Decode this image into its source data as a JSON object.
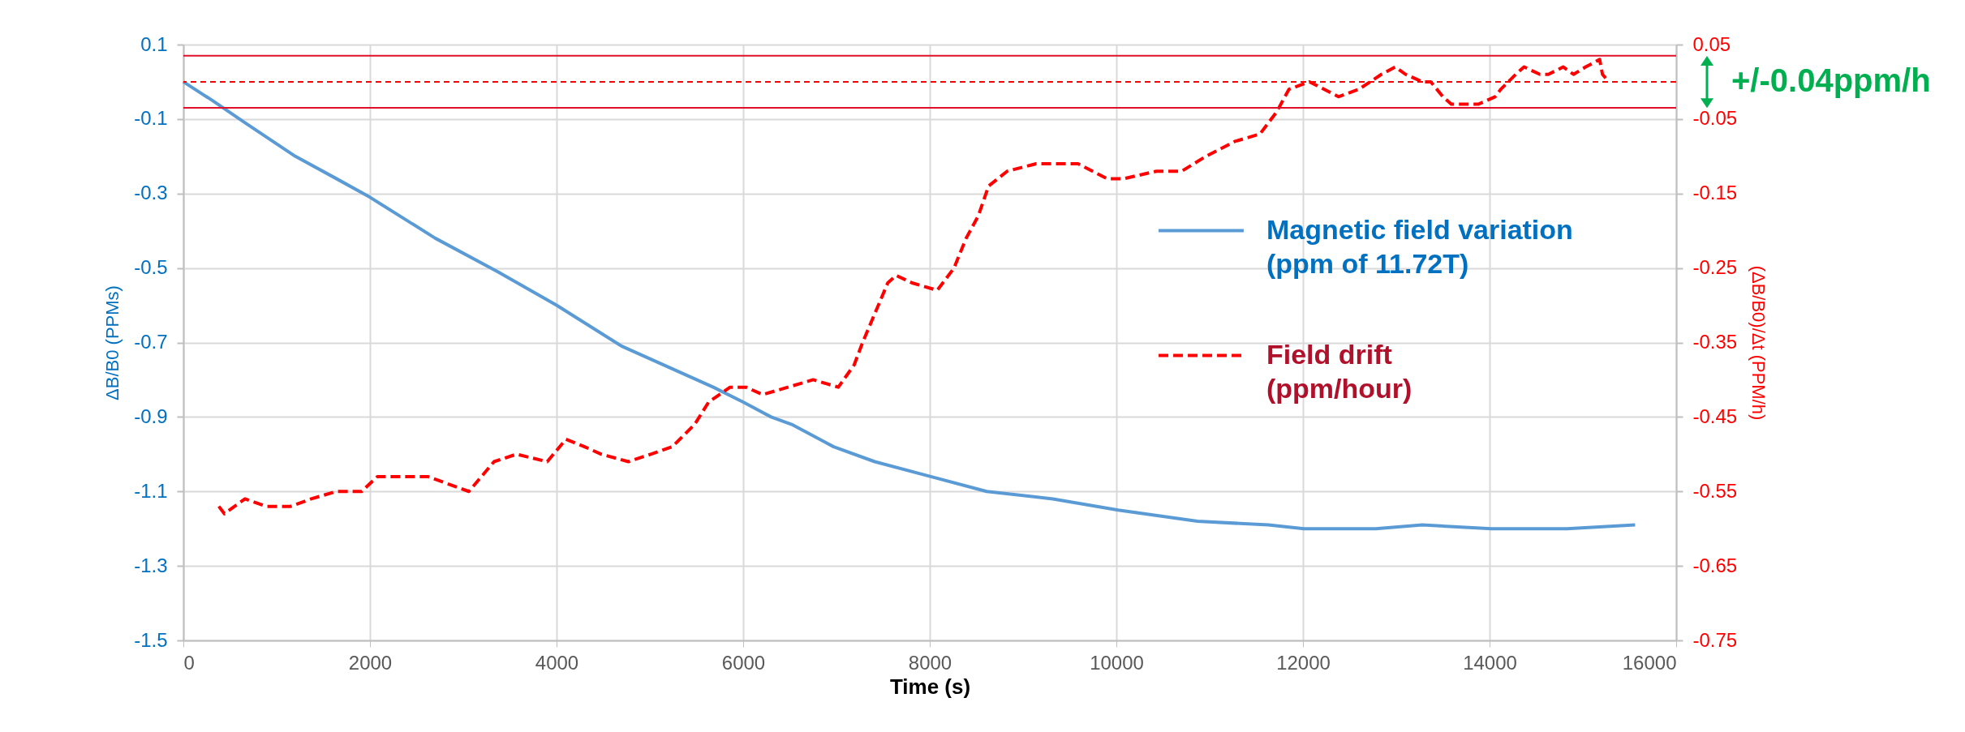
{
  "chart_data": {
    "type": "line",
    "xlabel": "Time (s)",
    "ylabel": "ΔB/B0 (PPMs)",
    "y2label": "(ΔB/B0)/Δt (PPM/h)",
    "xlim": [
      0,
      16000
    ],
    "xticks": [
      0,
      2000,
      4000,
      6000,
      8000,
      10000,
      12000,
      14000,
      16000
    ],
    "ylim": [
      -1.5,
      0.1
    ],
    "yticks": [
      0.1,
      -0.1,
      -0.3,
      -0.5,
      -0.7,
      -0.9,
      -1.1,
      -1.3,
      -1.5
    ],
    "y2lim": [
      -0.75,
      0.05
    ],
    "y2ticks": [
      0.05,
      -0.05,
      -0.15,
      -0.25,
      -0.35,
      -0.45,
      -0.55,
      -0.65,
      -0.75
    ],
    "grid": true,
    "legend": "right",
    "series": [
      {
        "name": "Magnetic field variation (ppm of 11.72T)",
        "color": "#5b9bd5",
        "line_style": "solid",
        "x": [
          0,
          310,
          660,
          1200,
          1640,
          2000,
          2700,
          3370,
          4000,
          4700,
          5680,
          6000,
          6300,
          6520,
          6970,
          7410,
          8010,
          8610,
          9320,
          10020,
          10870,
          11630,
          12010,
          12780,
          13280,
          14020,
          14830,
          15560
        ],
        "values": [
          0,
          -0.05,
          -0.11,
          -0.2,
          -0.26,
          -0.31,
          -0.42,
          -0.51,
          -0.6,
          -0.71,
          -0.82,
          -0.86,
          -0.9,
          -0.92,
          -0.98,
          -1.02,
          -1.06,
          -1.1,
          -1.12,
          -1.15,
          -1.18,
          -1.19,
          -1.2,
          -1.2,
          -1.19,
          -1.2,
          -1.2,
          -1.19
        ]
      },
      {
        "name": "Field drift (ppm/hour)",
        "color": "#ff0000",
        "line_style": "dashed",
        "axis": "y2",
        "x": [
          380,
          440,
          660,
          890,
          1150,
          1370,
          1640,
          1910,
          2080,
          2350,
          2620,
          2840,
          3060,
          3330,
          3570,
          3900,
          4100,
          4300,
          4480,
          4770,
          5010,
          5240,
          5480,
          5630,
          5860,
          6030,
          6210,
          6480,
          6750,
          7020,
          7190,
          7280,
          7550,
          7640,
          7810,
          8080,
          8260,
          8390,
          8520,
          8630,
          8830,
          9140,
          9370,
          9590,
          9900,
          10080,
          10430,
          10700,
          10960,
          11270,
          11540,
          11720,
          11850,
          12070,
          12380,
          12600,
          12840,
          12990,
          13100,
          13280,
          13370,
          13500,
          13590,
          13810,
          13880,
          14060,
          14120,
          14280,
          14370,
          14540,
          14630,
          14790,
          14900,
          15030,
          15180,
          15210,
          15280
        ],
        "values": [
          -0.57,
          -0.58,
          -0.56,
          -0.57,
          -0.57,
          -0.56,
          -0.55,
          -0.55,
          -0.53,
          -0.53,
          -0.53,
          -0.54,
          -0.55,
          -0.51,
          -0.5,
          -0.51,
          -0.48,
          -0.49,
          -0.5,
          -0.51,
          -0.5,
          -0.49,
          -0.46,
          -0.43,
          -0.41,
          -0.41,
          -0.42,
          -0.41,
          -0.4,
          -0.41,
          -0.38,
          -0.35,
          -0.27,
          -0.26,
          -0.27,
          -0.28,
          -0.25,
          -0.21,
          -0.18,
          -0.14,
          -0.12,
          -0.11,
          -0.11,
          -0.11,
          -0.13,
          -0.13,
          -0.12,
          -0.12,
          -0.1,
          -0.08,
          -0.07,
          -0.04,
          -0.01,
          0,
          -0.02,
          -0.01,
          0.01,
          0.02,
          0.01,
          0,
          0,
          -0.02,
          -0.03,
          -0.03,
          -0.03,
          -0.02,
          -0.01,
          0.01,
          0.02,
          0.01,
          0.01,
          0.02,
          0.01,
          0.02,
          0.03,
          0.01,
          0
        ]
      }
    ],
    "ref_lines": [
      {
        "axis": "y2",
        "value": 0.035,
        "color": "#e0102a",
        "line_style": "solid"
      },
      {
        "axis": "y2",
        "value": 0,
        "color": "#ff0000",
        "line_style": "dashed"
      },
      {
        "axis": "y2",
        "value": -0.035,
        "color": "#e0102a",
        "line_style": "solid"
      }
    ],
    "annotations": [
      "+/-0.04ppm/h"
    ]
  }
}
